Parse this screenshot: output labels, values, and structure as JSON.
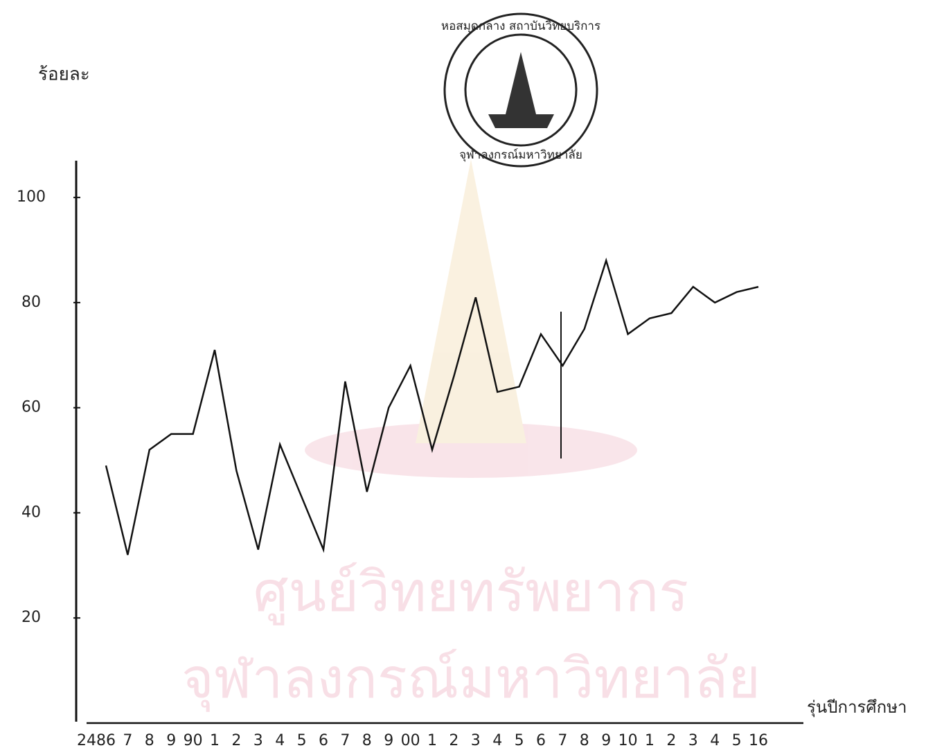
{
  "chart_data": {
    "type": "line",
    "y_label": "ร้อยละ",
    "x_label": "รุ่นปีการศึกษา",
    "stamp_top": "หอสมุดกลาง สถาบันวิทยบริการ",
    "stamp_bottom": "จุฬาลงกรณ์มหาวิทยาลัย",
    "watermark_1": "ศูนย์วิทยทรัพยากร",
    "watermark_2": "จุฬาลงกรณ์มหาวิทยาลัย",
    "categories": [
      "2486",
      "7",
      "8",
      "9",
      "90",
      "1",
      "2",
      "3",
      "4",
      "5",
      "6",
      "7",
      "8",
      "9",
      "00",
      "1",
      "2",
      "3",
      "4",
      "5",
      "6",
      "7",
      "8",
      "9",
      "10",
      "1",
      "2",
      "3",
      "4",
      "5",
      "16"
    ],
    "values": [
      49,
      32,
      52,
      55,
      55,
      71,
      48,
      33,
      53,
      43,
      33,
      65,
      44,
      60,
      68,
      52,
      66,
      81,
      63,
      64,
      74,
      68,
      75,
      88,
      74,
      77,
      78,
      83,
      80,
      82,
      83
    ],
    "color": "#111111",
    "ylim": [
      0,
      107
    ],
    "yticks": [
      20,
      40,
      60,
      80,
      100
    ]
  }
}
